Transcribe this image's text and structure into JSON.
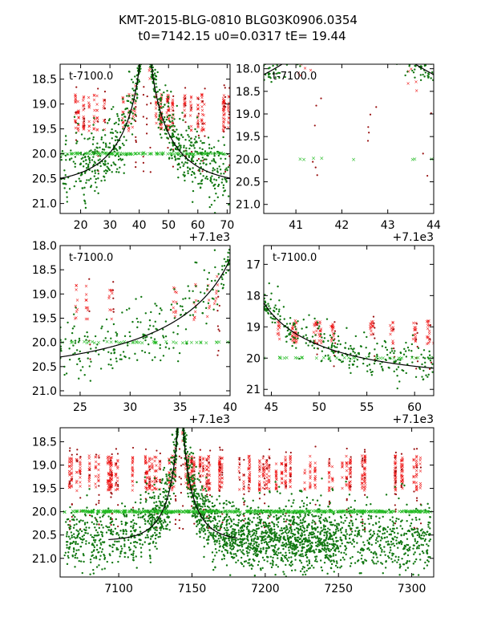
{
  "figure": {
    "title_line1": "KMT-2015-BLG-0810 BLG03K0906.0354",
    "title_line2": "t0=7142.15 u0=0.0317 tE=  19.44"
  },
  "chart_data": {
    "type": "scatter",
    "model": {
      "t0": 7142.15,
      "u0": 0.0317,
      "tE": 19.44,
      "baseline_mag": 20.63,
      "peak_mag": 18.2
    },
    "colors": {
      "red": "#ee1111",
      "darkred": "#991111",
      "green": "#117711",
      "lime": "#22bb22",
      "model": "#000000"
    },
    "panels": [
      {
        "id": "panel-1",
        "annotation": "t-7100.0",
        "offset_label": "+7.1e3",
        "xlim": [
          13,
          71
        ],
        "ylim": [
          21.2,
          18.2
        ],
        "xticks": [
          20,
          30,
          40,
          50,
          60,
          70
        ],
        "yticks": [
          18.5,
          19.0,
          19.5,
          20.0,
          20.5,
          21.0
        ],
        "model_range": [
          13,
          71
        ]
      },
      {
        "id": "panel-2",
        "annotation": "t-7100.0",
        "offset_label": "+7.1e3",
        "xlim": [
          40.3,
          44.0
        ],
        "ylim": [
          21.2,
          17.9
        ],
        "xticks": [
          41,
          42,
          43,
          44
        ],
        "yticks": [
          18.0,
          18.5,
          19.0,
          19.5,
          20.0,
          20.5,
          21.0
        ],
        "model_range": [
          40.3,
          44.0
        ]
      },
      {
        "id": "panel-3",
        "annotation": "t-7100.0",
        "offset_label": "+7.1e3",
        "xlim": [
          23,
          40
        ],
        "ylim": [
          21.1,
          18.0
        ],
        "xticks": [
          25,
          30,
          35,
          40
        ],
        "yticks": [
          18.0,
          18.5,
          19.0,
          19.5,
          20.0,
          20.5,
          21.0
        ],
        "model_range": [
          23,
          40
        ]
      },
      {
        "id": "panel-4",
        "annotation": "t-7100.0",
        "offset_label": "+7.1e3",
        "xlim": [
          44.2,
          62.0
        ],
        "ylim": [
          21.2,
          16.4
        ],
        "xticks": [
          45,
          50,
          55,
          60
        ],
        "yticks": [
          17,
          18,
          19,
          20,
          21
        ],
        "model_range": [
          44.2,
          62.0
        ]
      },
      {
        "id": "panel-5",
        "annotation": "",
        "offset_label": "",
        "xlim": [
          7060,
          7315
        ],
        "ylim": [
          21.4,
          18.2
        ],
        "xticks": [
          7100,
          7150,
          7200,
          7250,
          7300
        ],
        "yticks": [
          18.5,
          19.0,
          19.5,
          20.0,
          20.5,
          21.0
        ],
        "model_range": [
          7093,
          7181
        ]
      }
    ]
  }
}
